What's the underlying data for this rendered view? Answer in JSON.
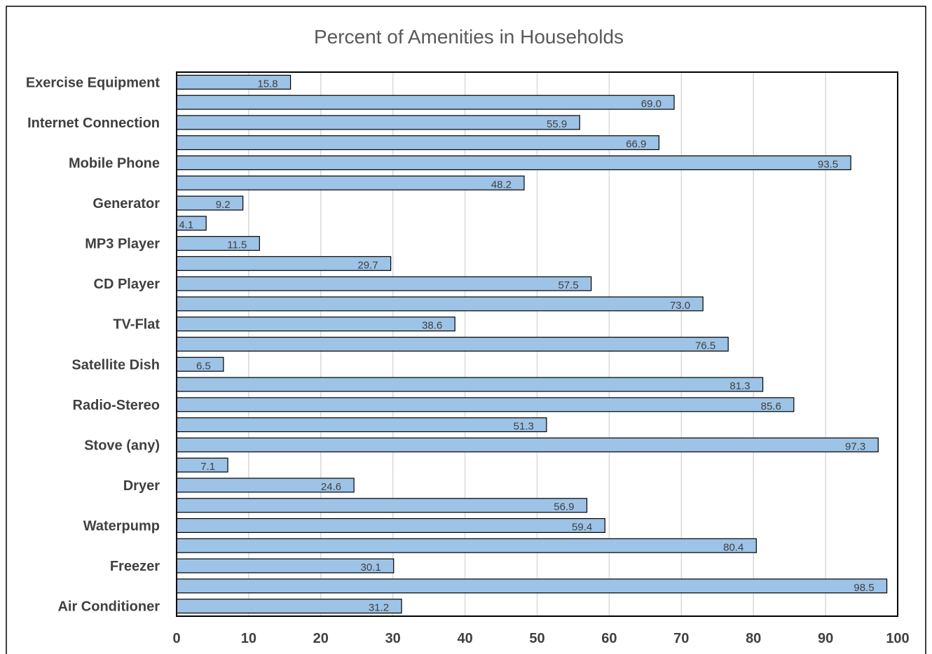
{
  "chart_data": {
    "type": "bar",
    "orientation": "horizontal",
    "title": "Percent of Amenities in Households",
    "xlabel": "",
    "ylabel": "",
    "xlim": [
      0,
      100
    ],
    "x_ticks": [
      "0",
      "10",
      "20",
      "30",
      "40",
      "50",
      "60",
      "70",
      "80",
      "90",
      "100"
    ],
    "grid": "vertical",
    "legend": "none",
    "bar_color": "#9dc3e6",
    "bar_border_color": "#000000",
    "categories": [
      {
        "label": "Air Conditioner",
        "value": 31.2,
        "value_label": "31.2"
      },
      {
        "label": "",
        "value": 98.5,
        "value_label": "98.5"
      },
      {
        "label": "Freezer",
        "value": 30.1,
        "value_label": "30.1"
      },
      {
        "label": "",
        "value": 80.4,
        "value_label": "80.4"
      },
      {
        "label": "Waterpump",
        "value": 59.4,
        "value_label": "59.4"
      },
      {
        "label": "",
        "value": 56.9,
        "value_label": "56.9"
      },
      {
        "label": "Dryer",
        "value": 24.6,
        "value_label": "24.6"
      },
      {
        "label": "",
        "value": 7.1,
        "value_label": "7.1"
      },
      {
        "label": "Stove (any)",
        "value": 97.3,
        "value_label": "97.3"
      },
      {
        "label": "",
        "value": 51.3,
        "value_label": "51.3"
      },
      {
        "label": "Radio-Stereo",
        "value": 85.6,
        "value_label": "85.6"
      },
      {
        "label": "",
        "value": 81.3,
        "value_label": "81.3"
      },
      {
        "label": "Satellite Dish",
        "value": 6.5,
        "value_label": "6.5"
      },
      {
        "label": "",
        "value": 76.5,
        "value_label": "76.5"
      },
      {
        "label": "TV-Flat",
        "value": 38.6,
        "value_label": "38.6"
      },
      {
        "label": "",
        "value": 73.0,
        "value_label": "73.0"
      },
      {
        "label": "CD Player",
        "value": 57.5,
        "value_label": "57.5"
      },
      {
        "label": "",
        "value": 29.7,
        "value_label": "29.7"
      },
      {
        "label": "MP3 Player",
        "value": 11.5,
        "value_label": "11.5"
      },
      {
        "label": "",
        "value": 4.1,
        "value_label": "4.1"
      },
      {
        "label": "Generator",
        "value": 9.2,
        "value_label": "9.2"
      },
      {
        "label": "",
        "value": 48.2,
        "value_label": "48.2"
      },
      {
        "label": "Mobile Phone",
        "value": 93.5,
        "value_label": "93.5"
      },
      {
        "label": "",
        "value": 66.9,
        "value_label": "66.9"
      },
      {
        "label": "Internet Connection",
        "value": 55.9,
        "value_label": "55.9"
      },
      {
        "label": "",
        "value": 69.0,
        "value_label": "69.0"
      },
      {
        "label": "Exercise Equipment",
        "value": 15.8,
        "value_label": "15.8"
      }
    ]
  }
}
